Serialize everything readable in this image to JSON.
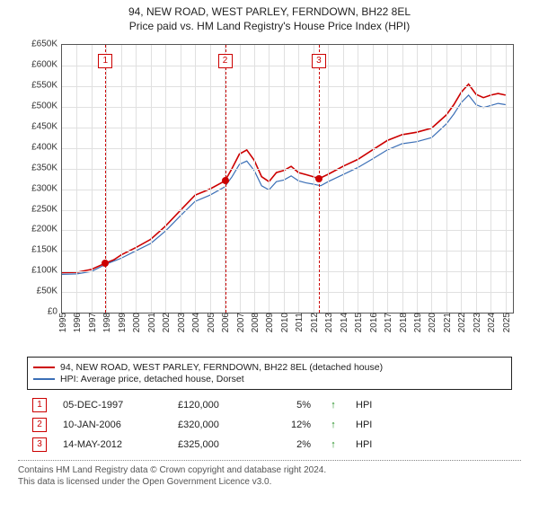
{
  "title": {
    "line1": "94, NEW ROAD, WEST PARLEY, FERNDOWN, BH22 8EL",
    "line2": "Price paid vs. HM Land Registry's House Price Index (HPI)",
    "fontsize": 12
  },
  "chart": {
    "type": "line",
    "background_color": "#ffffff",
    "grid_color": "#e0e0e0",
    "border_color": "#555555",
    "ylim": [
      0,
      650000
    ],
    "ytick_step": 50000,
    "yticks": [
      "£0",
      "£50K",
      "£100K",
      "£150K",
      "£200K",
      "£250K",
      "£300K",
      "£350K",
      "£400K",
      "£450K",
      "£500K",
      "£550K",
      "£600K",
      "£650K"
    ],
    "xlim": [
      1995,
      2025.5
    ],
    "xticks": [
      1995,
      1996,
      1997,
      1998,
      1999,
      2000,
      2001,
      2002,
      2003,
      2004,
      2005,
      2006,
      2007,
      2008,
      2009,
      2010,
      2011,
      2012,
      2013,
      2014,
      2015,
      2016,
      2017,
      2018,
      2019,
      2020,
      2021,
      2022,
      2023,
      2024,
      2025
    ],
    "tick_fontsize": 10,
    "series": [
      {
        "name": "subject",
        "label": "94, NEW ROAD, WEST PARLEY, FERNDOWN, BH22 8EL (detached house)",
        "color": "#cc0000",
        "width": 1.6,
        "points": [
          [
            1995,
            97000
          ],
          [
            1996,
            98000
          ],
          [
            1997,
            105000
          ],
          [
            1997.93,
            120000
          ],
          [
            1998.5,
            128000
          ],
          [
            1999,
            140000
          ],
          [
            2000,
            158000
          ],
          [
            2001,
            178000
          ],
          [
            2002,
            210000
          ],
          [
            2003,
            248000
          ],
          [
            2004,
            285000
          ],
          [
            2005,
            300000
          ],
          [
            2006.03,
            320000
          ],
          [
            2006.5,
            350000
          ],
          [
            2007,
            385000
          ],
          [
            2007.5,
            395000
          ],
          [
            2008,
            370000
          ],
          [
            2008.5,
            330000
          ],
          [
            2009,
            318000
          ],
          [
            2009.5,
            340000
          ],
          [
            2010,
            345000
          ],
          [
            2010.5,
            355000
          ],
          [
            2011,
            340000
          ],
          [
            2011.5,
            335000
          ],
          [
            2012,
            330000
          ],
          [
            2012.37,
            325000
          ],
          [
            2013,
            336000
          ],
          [
            2014,
            355000
          ],
          [
            2015,
            372000
          ],
          [
            2016,
            395000
          ],
          [
            2017,
            418000
          ],
          [
            2018,
            432000
          ],
          [
            2019,
            438000
          ],
          [
            2020,
            448000
          ],
          [
            2021,
            480000
          ],
          [
            2021.5,
            505000
          ],
          [
            2022,
            535000
          ],
          [
            2022.5,
            555000
          ],
          [
            2023,
            530000
          ],
          [
            2023.5,
            522000
          ],
          [
            2024,
            528000
          ],
          [
            2024.5,
            532000
          ],
          [
            2025,
            528000
          ]
        ]
      },
      {
        "name": "hpi",
        "label": "HPI: Average price, detached house, Dorset",
        "color": "#3b6fb6",
        "width": 1.2,
        "points": [
          [
            1995,
            93000
          ],
          [
            1996,
            94000
          ],
          [
            1997,
            100000
          ],
          [
            1998,
            118000
          ],
          [
            1999,
            132000
          ],
          [
            2000,
            150000
          ],
          [
            2001,
            168000
          ],
          [
            2002,
            198000
          ],
          [
            2003,
            235000
          ],
          [
            2004,
            270000
          ],
          [
            2005,
            285000
          ],
          [
            2006,
            305000
          ],
          [
            2006.5,
            330000
          ],
          [
            2007,
            360000
          ],
          [
            2007.5,
            368000
          ],
          [
            2008,
            345000
          ],
          [
            2008.5,
            308000
          ],
          [
            2009,
            298000
          ],
          [
            2009.5,
            318000
          ],
          [
            2010,
            322000
          ],
          [
            2010.5,
            332000
          ],
          [
            2011,
            320000
          ],
          [
            2011.5,
            315000
          ],
          [
            2012,
            312000
          ],
          [
            2012.5,
            308000
          ],
          [
            2013,
            318000
          ],
          [
            2014,
            335000
          ],
          [
            2015,
            352000
          ],
          [
            2016,
            373000
          ],
          [
            2017,
            395000
          ],
          [
            2018,
            410000
          ],
          [
            2019,
            415000
          ],
          [
            2020,
            425000
          ],
          [
            2021,
            458000
          ],
          [
            2021.5,
            482000
          ],
          [
            2022,
            510000
          ],
          [
            2022.5,
            528000
          ],
          [
            2023,
            505000
          ],
          [
            2023.5,
            498000
          ],
          [
            2024,
            503000
          ],
          [
            2024.5,
            508000
          ],
          [
            2025,
            505000
          ]
        ]
      }
    ],
    "events": [
      {
        "n": "1",
        "date": "05-DEC-1997",
        "year": 1997.93,
        "price": 120000,
        "price_str": "£120,000",
        "pct": "5%",
        "dir": "↑",
        "cmp": "HPI",
        "color": "#cc0000"
      },
      {
        "n": "2",
        "date": "10-JAN-2006",
        "year": 2006.03,
        "price": 320000,
        "price_str": "£320,000",
        "pct": "12%",
        "dir": "↑",
        "cmp": "HPI",
        "color": "#cc0000"
      },
      {
        "n": "3",
        "date": "14-MAY-2012",
        "year": 2012.37,
        "price": 325000,
        "price_str": "£325,000",
        "pct": "2%",
        "dir": "↑",
        "cmp": "HPI",
        "color": "#cc0000"
      }
    ],
    "sale_dot_color": "#cc0000"
  },
  "legend": {
    "border_color": "#222222"
  },
  "events_table": {
    "badge_color": "#cc0000",
    "arrow_up_color": "#1a8a1a"
  },
  "footer": {
    "line1": "Contains HM Land Registry data © Crown copyright and database right 2024.",
    "line2": "This data is licensed under the Open Government Licence v3.0."
  }
}
